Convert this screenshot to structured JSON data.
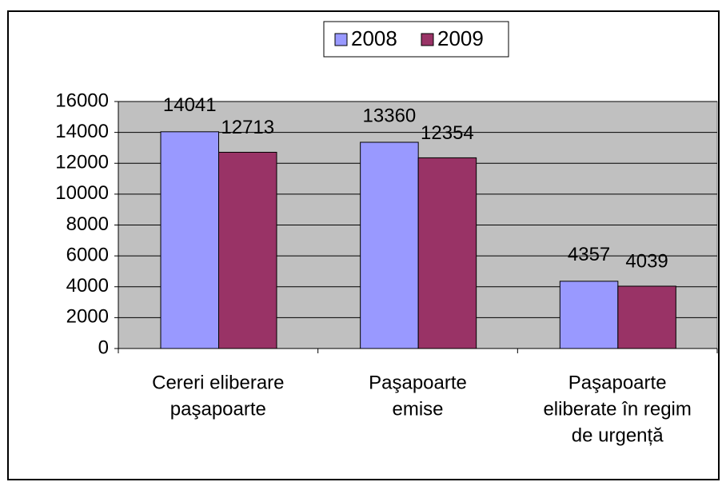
{
  "chart_data": {
    "type": "bar",
    "categories": [
      [
        "Cereri eliberare",
        "paşapoarte"
      ],
      [
        "Paşapoarte",
        "emise"
      ],
      [
        "Paşapoarte",
        "eliberate în regim",
        "de urgență"
      ]
    ],
    "series": [
      {
        "name": "2008",
        "color": "#9999ff",
        "values": [
          14041,
          13360,
          4357
        ]
      },
      {
        "name": "2009",
        "color": "#993366",
        "values": [
          12713,
          12354,
          4039
        ]
      }
    ],
    "ylim": [
      0,
      16000
    ],
    "yticks": [
      0,
      2000,
      4000,
      6000,
      8000,
      10000,
      12000,
      14000,
      16000
    ],
    "grid": true,
    "legend": "top",
    "plot_background": "#c0c0c0"
  }
}
